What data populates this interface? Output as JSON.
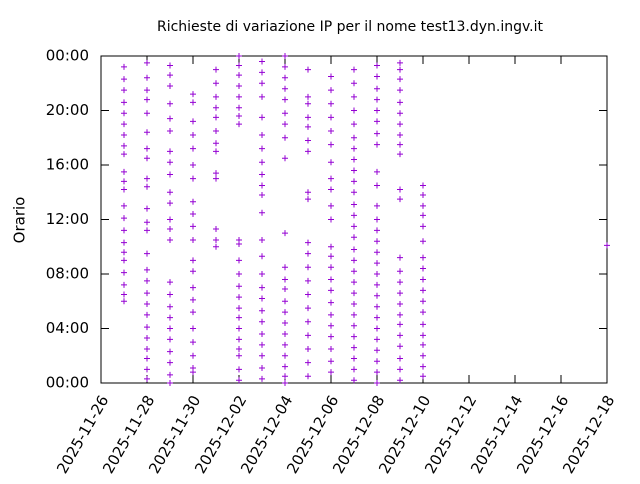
{
  "chart_data": {
    "type": "scatter",
    "title": "Richieste di variazione IP per il nome test13.dyn.ingv.it",
    "y_label": "Orario",
    "color": "#9400d3",
    "xlim": [
      "2025-11-26",
      "2025-12-18"
    ],
    "xticks": [
      "2025-11-26",
      "2025-11-28",
      "2025-11-30",
      "2025-12-02",
      "2025-12-04",
      "2025-12-06",
      "2025-12-08",
      "2025-12-10",
      "2025-12-12",
      "2025-12-14",
      "2025-12-16",
      "2025-12-18"
    ],
    "ylim": [
      0,
      24
    ],
    "yticks": [
      {
        "value": 0,
        "label": "00:00"
      },
      {
        "value": 4,
        "label": "04:00"
      },
      {
        "value": 8,
        "label": "08:00"
      },
      {
        "value": 12,
        "label": "12:00"
      },
      {
        "value": 16,
        "label": "16:00"
      },
      {
        "value": 20,
        "label": "20:00"
      },
      {
        "value": 24,
        "label": "00:00"
      }
    ],
    "x": [
      "2025-11-27",
      "2025-11-28",
      "2025-11-29",
      "2025-11-30",
      "2025-12-01",
      "2025-12-02",
      "2025-12-03",
      "2025-12-04",
      "2025-12-05",
      "2025-12-06",
      "2025-12-07",
      "2025-12-08",
      "2025-12-09",
      "2025-12-10",
      "2025-12-18"
    ],
    "values": [
      [
        6.0,
        6.5,
        7.2,
        8.1,
        9.0,
        9.6,
        10.3,
        11.2,
        12.1,
        13.0,
        14.2,
        14.8,
        15.5,
        16.8,
        17.4,
        18.2,
        19.0,
        19.8,
        20.6,
        21.5,
        22.3,
        23.2
      ],
      [
        0.3,
        1.0,
        1.8,
        2.5,
        3.3,
        4.1,
        5.0,
        5.8,
        6.6,
        7.5,
        8.3,
        9.5,
        11.2,
        11.8,
        12.8,
        14.4,
        15.0,
        16.5,
        17.2,
        18.4,
        19.8,
        20.8,
        21.5,
        22.4,
        23.5
      ],
      [
        0,
        0.6,
        1.5,
        2.3,
        3.2,
        4.0,
        4.8,
        5.6,
        6.5,
        7.4,
        10.5,
        11.3,
        12.0,
        13.2,
        14.0,
        15.3,
        16.2,
        17.0,
        18.5,
        19.4,
        20.5,
        21.8,
        22.6,
        23.3
      ],
      [
        0.8,
        1.1,
        2.0,
        3.0,
        4.0,
        5.2,
        6.1,
        7.0,
        8.2,
        9.0,
        10.5,
        11.5,
        12.4,
        13.3,
        15.0,
        16.0,
        17.2,
        18.2,
        19.2,
        20.6,
        21.2
      ],
      [
        10.0,
        10.5,
        11.3,
        15.0,
        15.4,
        17.0,
        17.6,
        18.5,
        19.5,
        20.2,
        21.0,
        22.0,
        23.0
      ],
      [
        0.2,
        1.0,
        2.0,
        2.5,
        3.2,
        4.0,
        4.8,
        5.5,
        6.3,
        7.1,
        8.0,
        9.0,
        10.2,
        10.5,
        19.0,
        19.6,
        20.2,
        21.0,
        21.8,
        22.6,
        23.3,
        24.0
      ],
      [
        0.3,
        1.1,
        2.0,
        2.8,
        3.6,
        4.5,
        5.3,
        6.2,
        7.0,
        8.0,
        9.3,
        10.5,
        12.5,
        13.8,
        14.5,
        15.3,
        16.2,
        17.2,
        18.2,
        19.5,
        21.0,
        22.0,
        22.8,
        23.6
      ],
      [
        0,
        0.5,
        1.2,
        2.0,
        2.8,
        3.6,
        4.4,
        5.2,
        6.0,
        6.9,
        7.6,
        8.5,
        11.0,
        16.5,
        18.0,
        19.0,
        19.8,
        20.8,
        21.6,
        22.4,
        23.2,
        24.0
      ],
      [
        0.5,
        1.5,
        2.5,
        3.5,
        4.5,
        5.5,
        6.5,
        7.5,
        8.5,
        9.5,
        10.3,
        13.5,
        14.0,
        17.0,
        17.8,
        18.8,
        19.5,
        20.5,
        21.0,
        23.0
      ],
      [
        0.8,
        1.6,
        2.5,
        3.4,
        4.2,
        5.0,
        5.9,
        6.8,
        7.6,
        8.5,
        9.3,
        10.0,
        12.0,
        13.0,
        14.2,
        15.0,
        16.2,
        17.5,
        18.5,
        19.5,
        20.5,
        21.5,
        22.5
      ],
      [
        0.2,
        1.0,
        1.8,
        2.6,
        3.4,
        4.2,
        5.0,
        5.8,
        6.6,
        7.4,
        8.2,
        9.0,
        9.8,
        10.7,
        11.5,
        12.3,
        13.1,
        14.0,
        14.8,
        15.6,
        16.4,
        17.2,
        18.0,
        19.0,
        20.0,
        21.0,
        22.0,
        23.0
      ],
      [
        0,
        0.8,
        1.6,
        2.4,
        3.2,
        4.0,
        4.8,
        5.6,
        6.4,
        7.2,
        8.0,
        8.8,
        9.6,
        10.4,
        11.2,
        12.0,
        13.0,
        14.5,
        15.5,
        17.5,
        18.3,
        19.2,
        20.0,
        20.8,
        21.6,
        22.5,
        23.3
      ],
      [
        0.2,
        1.0,
        1.8,
        2.7,
        3.5,
        4.3,
        5.0,
        5.8,
        6.6,
        7.4,
        8.2,
        9.2,
        13.5,
        14.2,
        16.8,
        17.5,
        18.2,
        19.0,
        19.8,
        20.6,
        21.5,
        22.3,
        23.0,
        23.5
      ],
      [
        0.5,
        1.2,
        2.0,
        2.8,
        3.5,
        4.3,
        5.2,
        6.0,
        6.8,
        7.6,
        8.4,
        9.2,
        10.4,
        11.5,
        12.3,
        13.0,
        13.8,
        14.5
      ],
      [
        10.1
      ]
    ]
  }
}
